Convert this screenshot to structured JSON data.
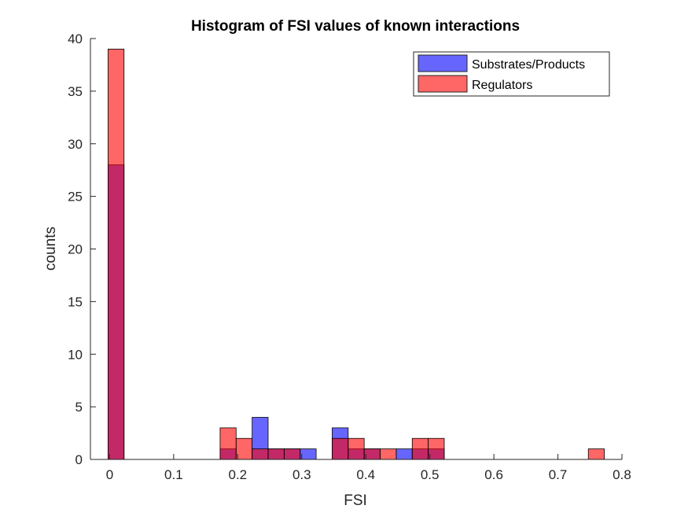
{
  "chart_data": {
    "type": "bar",
    "title": "Histogram of FSI values of known interactions",
    "xlabel": "FSI",
    "ylabel": "counts",
    "xlim": [
      -0.03,
      0.8
    ],
    "ylim": [
      0,
      40
    ],
    "xticks": [
      0,
      0.1,
      0.2,
      0.3,
      0.4,
      0.5,
      0.6,
      0.7,
      0.8
    ],
    "xtick_labels": [
      "0",
      "0.1",
      "0.2",
      "0.3",
      "0.4",
      "0.5",
      "0.6",
      "0.7",
      "0.8"
    ],
    "yticks": [
      0,
      5,
      10,
      15,
      20,
      25,
      30,
      35,
      40
    ],
    "ytick_labels": [
      "0",
      "5",
      "10",
      "15",
      "20",
      "25",
      "30",
      "35",
      "40"
    ],
    "grid": false,
    "legend_position": "top-right",
    "bin_edges": [
      -0.0025,
      0.0225,
      0.0475,
      0.0725,
      0.0975,
      0.1225,
      0.1475,
      0.1725,
      0.1975,
      0.2225,
      0.2475,
      0.2725,
      0.2975,
      0.3225,
      0.3475,
      0.3725,
      0.3975,
      0.4225,
      0.4475,
      0.4725,
      0.4975,
      0.5225,
      0.5475,
      0.5725,
      0.5975,
      0.6225,
      0.6475,
      0.6725,
      0.6975,
      0.7225,
      0.7475,
      0.7725
    ],
    "series": [
      {
        "name": "Substrates/Products",
        "color": "#0000ff",
        "values": [
          28,
          0,
          0,
          0,
          0,
          0,
          0,
          1,
          0,
          4,
          1,
          1,
          1,
          0,
          3,
          1,
          1,
          0,
          1,
          1,
          1,
          0,
          0,
          0,
          0,
          0,
          0,
          0,
          0,
          0,
          0
        ]
      },
      {
        "name": "Regulators",
        "color": "#ff0000",
        "values": [
          39,
          0,
          0,
          0,
          0,
          0,
          0,
          3,
          2,
          1,
          1,
          1,
          0,
          0,
          2,
          2,
          1,
          1,
          0,
          2,
          2,
          0,
          0,
          0,
          0,
          0,
          0,
          0,
          0,
          0,
          1
        ]
      }
    ]
  }
}
